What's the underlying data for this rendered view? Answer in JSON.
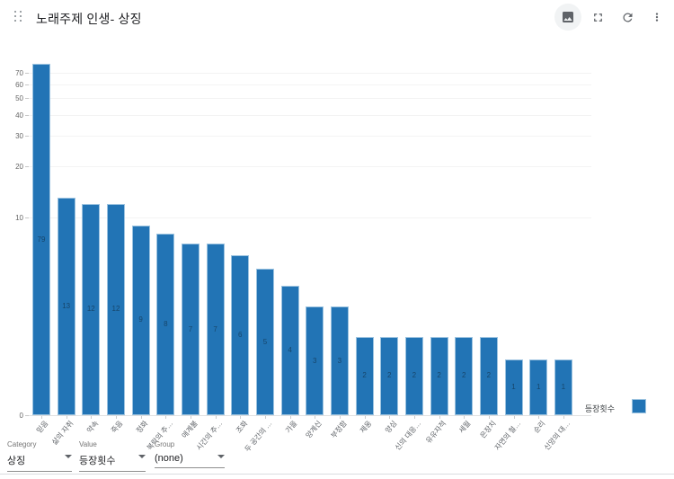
{
  "header": {
    "title": "노래주제 인생- 상징",
    "icons": [
      "image-icon",
      "fullscreen-icon",
      "refresh-icon",
      "more-vert-icon"
    ]
  },
  "chart_data": {
    "type": "bar",
    "title": "노래주제 인생- 상징",
    "series_name": "등장횟수",
    "categories": [
      "믿음",
      "삶의 자취",
      "약속",
      "죽음",
      "정화",
      "복락의 추…",
      "애계불",
      "시간의 추…",
      "조화",
      "두 공간의 …",
      "가을",
      "양계신",
      "부정함",
      "제웅",
      "양심",
      "신의 대응…",
      "유유자적",
      "세월",
      "은장치",
      "자연의 철…",
      "순리",
      "신앙의 대…"
    ],
    "values": [
      79,
      13,
      12,
      12,
      9,
      8,
      7,
      7,
      6,
      5,
      4,
      3,
      3,
      2,
      2,
      2,
      2,
      2,
      2,
      1,
      1,
      1
    ],
    "y_ticks": [
      0,
      10,
      20,
      30,
      40,
      50,
      60,
      70
    ],
    "y_scale": "log",
    "ylim": [
      0,
      79
    ],
    "grid": true,
    "bar_color": "#2274b5",
    "bar_border_color": "#9cc3e0",
    "legend_position": "bottom-right"
  },
  "legend": {
    "label": "등장횟수"
  },
  "controls": {
    "category": {
      "label": "Category",
      "value": "상징"
    },
    "value": {
      "label": "Value",
      "value": "등장횟수"
    },
    "group": {
      "label": "Group",
      "value": "(none)"
    }
  }
}
